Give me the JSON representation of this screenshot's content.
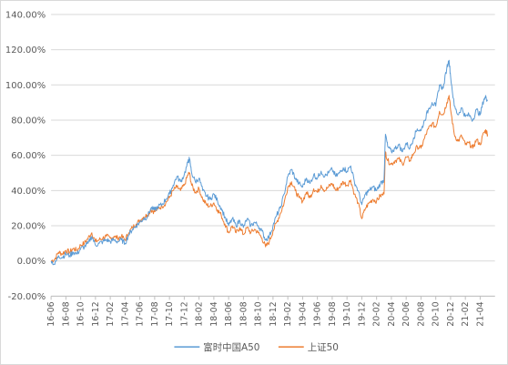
{
  "chart_data": {
    "type": "line",
    "title": "",
    "xlabel": "",
    "ylabel": "",
    "ylim": [
      -0.2,
      1.4
    ],
    "y_ticks": [
      "-20.00%",
      "0.00%",
      "20.00%",
      "40.00%",
      "60.00%",
      "80.00%",
      "100.00%",
      "120.00%",
      "140.00%"
    ],
    "x_ticks": [
      "16-06",
      "16-08",
      "16-10",
      "16-12",
      "17-02",
      "17-04",
      "17-06",
      "17-08",
      "17-10",
      "17-12",
      "18-02",
      "18-04",
      "18-06",
      "18-08",
      "18-10",
      "18-12",
      "19-02",
      "19-04",
      "19-06",
      "19-08",
      "19-10",
      "19-12",
      "20-02",
      "20-04",
      "20-06",
      "20-08",
      "20-10",
      "20-12",
      "21-02",
      "21-04"
    ],
    "grid": "horizontal",
    "legend_position": "bottom",
    "x_range_months": [
      0,
      60
    ],
    "colors": {
      "fuller_a50": "#5b9bd5",
      "sse50": "#ed7d31",
      "grid": "#d9d9d9",
      "axis": "#bfbfbf",
      "text": "#595959"
    },
    "series": [
      {
        "name": "富时中国A50",
        "color": "#5b9bd5",
        "points": [
          [
            0,
            0.0
          ],
          [
            0.5,
            -0.02
          ],
          [
            1,
            0.03
          ],
          [
            1.5,
            0.02
          ],
          [
            2,
            0.04
          ],
          [
            2.5,
            0.03
          ],
          [
            3,
            0.05
          ],
          [
            3.5,
            0.04
          ],
          [
            4,
            0.07
          ],
          [
            4.5,
            0.08
          ],
          [
            5,
            0.1
          ],
          [
            5.5,
            0.14
          ],
          [
            6,
            0.09
          ],
          [
            6.5,
            0.1
          ],
          [
            7,
            0.11
          ],
          [
            7.5,
            0.12
          ],
          [
            8,
            0.11
          ],
          [
            8.5,
            0.12
          ],
          [
            9,
            0.11
          ],
          [
            9.5,
            0.12
          ],
          [
            10,
            0.1
          ],
          [
            10.5,
            0.15
          ],
          [
            11,
            0.18
          ],
          [
            11.5,
            0.2
          ],
          [
            12,
            0.22
          ],
          [
            12.5,
            0.24
          ],
          [
            13,
            0.25
          ],
          [
            13.5,
            0.3
          ],
          [
            14,
            0.29
          ],
          [
            14.5,
            0.31
          ],
          [
            15,
            0.32
          ],
          [
            15.5,
            0.35
          ],
          [
            16,
            0.38
          ],
          [
            16.5,
            0.43
          ],
          [
            17,
            0.48
          ],
          [
            17.5,
            0.45
          ],
          [
            18,
            0.49
          ],
          [
            18.5,
            0.56
          ],
          [
            18.7,
            0.58
          ],
          [
            19,
            0.5
          ],
          [
            19.5,
            0.45
          ],
          [
            20,
            0.47
          ],
          [
            20.5,
            0.4
          ],
          [
            21,
            0.37
          ],
          [
            21.5,
            0.35
          ],
          [
            22,
            0.38
          ],
          [
            22.5,
            0.34
          ],
          [
            23,
            0.3
          ],
          [
            23.5,
            0.25
          ],
          [
            24,
            0.2
          ],
          [
            24.5,
            0.24
          ],
          [
            25,
            0.2
          ],
          [
            25.5,
            0.23
          ],
          [
            26,
            0.19
          ],
          [
            26.5,
            0.24
          ],
          [
            27,
            0.2
          ],
          [
            27.5,
            0.22
          ],
          [
            28,
            0.2
          ],
          [
            28.5,
            0.17
          ],
          [
            29,
            0.12
          ],
          [
            29.5,
            0.14
          ],
          [
            30,
            0.2
          ],
          [
            30.5,
            0.26
          ],
          [
            31,
            0.3
          ],
          [
            31.5,
            0.38
          ],
          [
            32,
            0.48
          ],
          [
            32.5,
            0.52
          ],
          [
            33,
            0.47
          ],
          [
            33.5,
            0.44
          ],
          [
            34,
            0.42
          ],
          [
            34.5,
            0.47
          ],
          [
            35,
            0.44
          ],
          [
            35.5,
            0.49
          ],
          [
            36,
            0.47
          ],
          [
            36.5,
            0.51
          ],
          [
            37,
            0.48
          ],
          [
            37.5,
            0.5
          ],
          [
            38,
            0.52
          ],
          [
            38.5,
            0.48
          ],
          [
            39,
            0.5
          ],
          [
            39.5,
            0.53
          ],
          [
            40,
            0.51
          ],
          [
            40.5,
            0.54
          ],
          [
            41,
            0.45
          ],
          [
            41.5,
            0.4
          ],
          [
            42,
            0.32
          ],
          [
            42.5,
            0.38
          ],
          [
            43,
            0.4
          ],
          [
            43.5,
            0.42
          ],
          [
            44,
            0.4
          ],
          [
            44.5,
            0.44
          ],
          [
            45,
            0.46
          ],
          [
            45.2,
            0.72
          ],
          [
            45.5,
            0.65
          ],
          [
            46,
            0.62
          ],
          [
            46.5,
            0.64
          ],
          [
            47,
            0.66
          ],
          [
            47.5,
            0.62
          ],
          [
            48,
            0.67
          ],
          [
            48.5,
            0.64
          ],
          [
            49,
            0.7
          ],
          [
            49.5,
            0.75
          ],
          [
            50,
            0.74
          ],
          [
            50.5,
            0.8
          ],
          [
            51,
            0.86
          ],
          [
            51.5,
            0.9
          ],
          [
            52,
            0.88
          ],
          [
            52.5,
            1.0
          ],
          [
            53,
            0.98
          ],
          [
            53.5,
            1.1
          ],
          [
            53.8,
            1.14
          ],
          [
            54,
            1.05
          ],
          [
            54.5,
            0.88
          ],
          [
            55,
            0.83
          ],
          [
            55.5,
            0.87
          ],
          [
            56,
            0.82
          ],
          [
            56.5,
            0.83
          ],
          [
            57,
            0.8
          ],
          [
            57.5,
            0.86
          ],
          [
            58,
            0.83
          ],
          [
            58.5,
            0.92
          ],
          [
            58.8,
            0.93
          ],
          [
            59,
            0.91
          ]
        ]
      },
      {
        "name": "上证50",
        "color": "#ed7d31",
        "points": [
          [
            0,
            0.0
          ],
          [
            0.5,
            0.01
          ],
          [
            1,
            0.05
          ],
          [
            1.5,
            0.04
          ],
          [
            2,
            0.06
          ],
          [
            2.5,
            0.05
          ],
          [
            3,
            0.07
          ],
          [
            3.5,
            0.06
          ],
          [
            4,
            0.09
          ],
          [
            4.5,
            0.1
          ],
          [
            5,
            0.13
          ],
          [
            5.5,
            0.16
          ],
          [
            6,
            0.11
          ],
          [
            6.5,
            0.12
          ],
          [
            7,
            0.13
          ],
          [
            7.5,
            0.14
          ],
          [
            8,
            0.13
          ],
          [
            8.5,
            0.14
          ],
          [
            9,
            0.13
          ],
          [
            9.5,
            0.14
          ],
          [
            10,
            0.12
          ],
          [
            10.5,
            0.16
          ],
          [
            11,
            0.19
          ],
          [
            11.5,
            0.21
          ],
          [
            12,
            0.23
          ],
          [
            12.5,
            0.25
          ],
          [
            13,
            0.26
          ],
          [
            13.5,
            0.29
          ],
          [
            14,
            0.28
          ],
          [
            14.5,
            0.3
          ],
          [
            15,
            0.31
          ],
          [
            15.5,
            0.33
          ],
          [
            16,
            0.36
          ],
          [
            16.5,
            0.4
          ],
          [
            17,
            0.42
          ],
          [
            17.5,
            0.4
          ],
          [
            18,
            0.43
          ],
          [
            18.5,
            0.49
          ],
          [
            18.7,
            0.5
          ],
          [
            19,
            0.43
          ],
          [
            19.5,
            0.39
          ],
          [
            20,
            0.41
          ],
          [
            20.5,
            0.35
          ],
          [
            21,
            0.32
          ],
          [
            21.5,
            0.31
          ],
          [
            22,
            0.33
          ],
          [
            22.5,
            0.29
          ],
          [
            23,
            0.26
          ],
          [
            23.5,
            0.21
          ],
          [
            24,
            0.16
          ],
          [
            24.5,
            0.2
          ],
          [
            25,
            0.16
          ],
          [
            25.5,
            0.19
          ],
          [
            26,
            0.15
          ],
          [
            26.5,
            0.19
          ],
          [
            27,
            0.16
          ],
          [
            27.5,
            0.18
          ],
          [
            28,
            0.16
          ],
          [
            28.5,
            0.13
          ],
          [
            29,
            0.08
          ],
          [
            29.5,
            0.11
          ],
          [
            30,
            0.17
          ],
          [
            30.5,
            0.22
          ],
          [
            31,
            0.27
          ],
          [
            31.5,
            0.33
          ],
          [
            32,
            0.42
          ],
          [
            32.5,
            0.45
          ],
          [
            33,
            0.4
          ],
          [
            33.5,
            0.36
          ],
          [
            34,
            0.34
          ],
          [
            34.5,
            0.39
          ],
          [
            35,
            0.36
          ],
          [
            35.5,
            0.41
          ],
          [
            36,
            0.39
          ],
          [
            36.5,
            0.43
          ],
          [
            37,
            0.4
          ],
          [
            37.5,
            0.42
          ],
          [
            38,
            0.44
          ],
          [
            38.5,
            0.4
          ],
          [
            39,
            0.42
          ],
          [
            39.5,
            0.45
          ],
          [
            40,
            0.43
          ],
          [
            40.5,
            0.46
          ],
          [
            41,
            0.38
          ],
          [
            41.5,
            0.33
          ],
          [
            42,
            0.24
          ],
          [
            42.5,
            0.3
          ],
          [
            43,
            0.33
          ],
          [
            43.5,
            0.35
          ],
          [
            44,
            0.34
          ],
          [
            44.5,
            0.37
          ],
          [
            45,
            0.38
          ],
          [
            45.2,
            0.62
          ],
          [
            45.5,
            0.57
          ],
          [
            46,
            0.55
          ],
          [
            46.5,
            0.57
          ],
          [
            47,
            0.58
          ],
          [
            47.5,
            0.55
          ],
          [
            48,
            0.59
          ],
          [
            48.5,
            0.57
          ],
          [
            49,
            0.61
          ],
          [
            49.5,
            0.65
          ],
          [
            50,
            0.64
          ],
          [
            50.5,
            0.7
          ],
          [
            51,
            0.75
          ],
          [
            51.5,
            0.78
          ],
          [
            52,
            0.76
          ],
          [
            52.5,
            0.85
          ],
          [
            53,
            0.83
          ],
          [
            53.5,
            0.9
          ],
          [
            53.8,
            0.94
          ],
          [
            54,
            0.86
          ],
          [
            54.5,
            0.72
          ],
          [
            55,
            0.68
          ],
          [
            55.5,
            0.71
          ],
          [
            56,
            0.66
          ],
          [
            56.5,
            0.67
          ],
          [
            57,
            0.64
          ],
          [
            57.5,
            0.69
          ],
          [
            58,
            0.66
          ],
          [
            58.5,
            0.73
          ],
          [
            58.8,
            0.74
          ],
          [
            59,
            0.72
          ]
        ]
      }
    ]
  }
}
